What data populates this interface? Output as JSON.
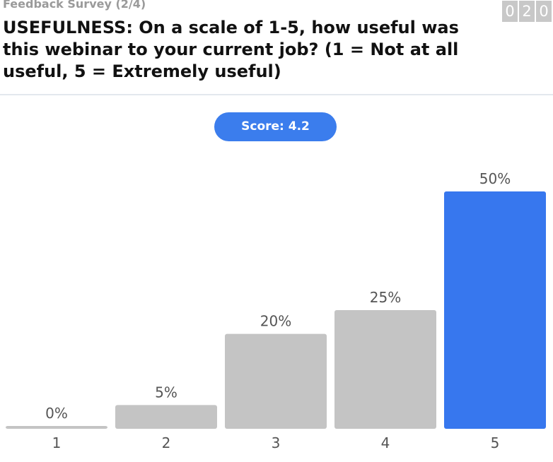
{
  "header": {
    "survey_label": "Feedback Survey (2/4)",
    "question": "USEFULNESS: On a scale of 1-5, how useful was this webinar to your current job? (1 = Not at all useful, 5 = Extremely useful)",
    "counter_digits": [
      "0",
      "2",
      "0"
    ]
  },
  "score": {
    "label": "Score: 4.2"
  },
  "colors": {
    "bar_default": "#c4c4c4",
    "bar_highlight": "#3777ee",
    "score_pill": "#3b7ded"
  },
  "chart_data": {
    "type": "bar",
    "title": "",
    "xlabel": "",
    "ylabel": "",
    "categories": [
      "1",
      "2",
      "3",
      "4",
      "5"
    ],
    "values": [
      0,
      5,
      20,
      25,
      50
    ],
    "value_labels": [
      "0%",
      "5%",
      "20%",
      "25%",
      "50%"
    ],
    "highlight_category": "5",
    "ylim": [
      0,
      50
    ],
    "grid": false,
    "legend": "none"
  }
}
